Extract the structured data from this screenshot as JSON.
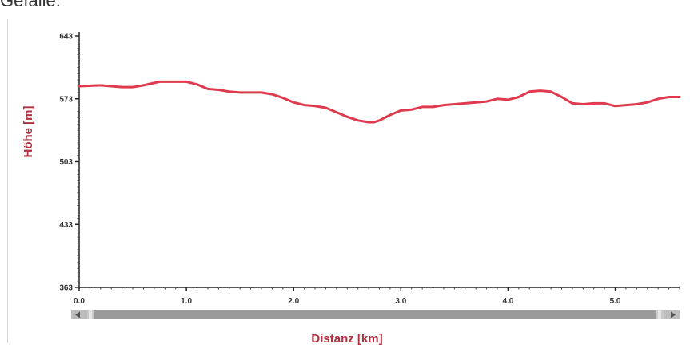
{
  "page": {
    "heading": "Gefälle:"
  },
  "chart_data": {
    "type": "line",
    "title": "",
    "xlabel": "Distanz [km]",
    "ylabel": "Höhe [m]",
    "xlim": [
      0,
      5.6
    ],
    "ylim": [
      363,
      643
    ],
    "xticks": [
      0.0,
      1.0,
      2.0,
      3.0,
      4.0,
      5.0
    ],
    "xtick_labels": [
      "0.0",
      "1.0",
      "2.0",
      "3.0",
      "4.0",
      "5.0"
    ],
    "yticks": [
      643,
      573,
      503,
      433,
      363
    ],
    "ytick_labels": [
      "643",
      "573",
      "503",
      "433",
      "363"
    ],
    "grid": false,
    "line_color": "#e03a4e",
    "label_color": "#b03040",
    "series": [
      {
        "x": [
          0.0,
          0.2,
          0.4,
          0.5,
          0.6,
          0.75,
          0.9,
          1.0,
          1.1,
          1.2,
          1.3,
          1.4,
          1.5,
          1.6,
          1.7,
          1.8,
          1.9,
          2.0,
          2.1,
          2.2,
          2.3,
          2.4,
          2.5,
          2.6,
          2.7,
          2.75,
          2.8,
          2.9,
          3.0,
          3.1,
          3.2,
          3.3,
          3.4,
          3.5,
          3.6,
          3.7,
          3.8,
          3.9,
          4.0,
          4.1,
          4.2,
          4.3,
          4.4,
          4.5,
          4.6,
          4.7,
          4.8,
          4.9,
          5.0,
          5.1,
          5.2,
          5.3,
          5.4,
          5.5,
          5.6
        ],
        "y": [
          587,
          588,
          586,
          586,
          588,
          592,
          592,
          592,
          589,
          584,
          583,
          581,
          580,
          580,
          580,
          578,
          574,
          569,
          566,
          565,
          563,
          558,
          553,
          549,
          547,
          547,
          549,
          555,
          560,
          561,
          564,
          564,
          566,
          567,
          568,
          569,
          570,
          573,
          572,
          575,
          581,
          582,
          581,
          575,
          568,
          567,
          568,
          568,
          565,
          566,
          567,
          569,
          573,
          575,
          575
        ]
      }
    ]
  }
}
